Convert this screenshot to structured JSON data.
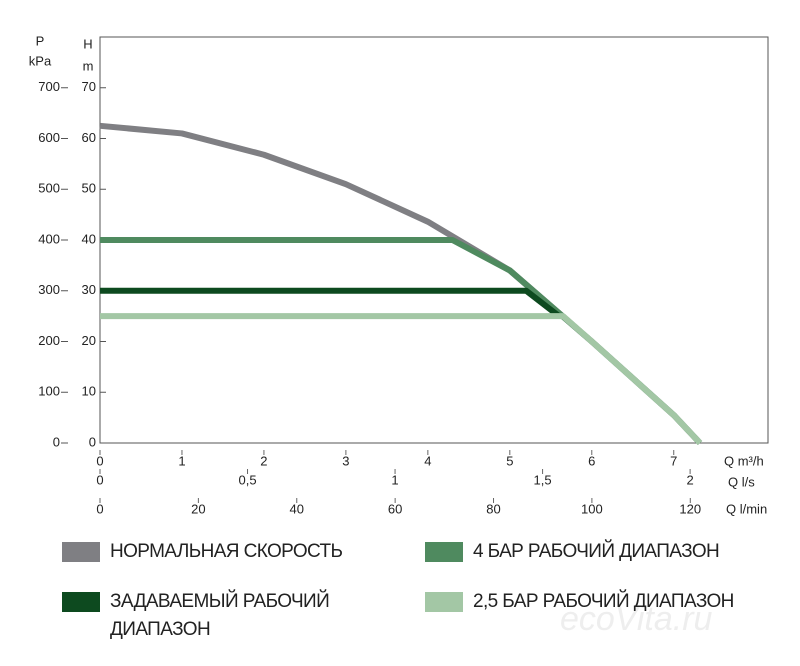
{
  "chart_data": {
    "type": "line",
    "y_label": "H",
    "y_unit": "m",
    "y2_label": "P",
    "y2_unit": "kPa",
    "x_label": "Q m³/h",
    "x2_label": "Q l/s",
    "x3_label": "Q l/min",
    "xlim": [
      0,
      8.15
    ],
    "xticks": [
      0,
      1,
      2,
      3,
      4,
      5,
      6,
      7
    ],
    "x2lim": [
      0,
      2.264
    ],
    "x2ticks": [
      0,
      {
        "value": 0.5,
        "label": "0,5"
      },
      1,
      {
        "value": 1.5,
        "label": "1,5"
      },
      2
    ],
    "x3lim": [
      0,
      135.8
    ],
    "x3ticks": [
      0,
      20,
      40,
      60,
      80,
      100,
      120
    ],
    "ylim": [
      0,
      80
    ],
    "yticks": [
      0,
      10,
      20,
      30,
      40,
      50,
      60,
      70
    ],
    "y2lim": [
      0,
      800
    ],
    "y2ticks": [
      0,
      100,
      200,
      300,
      400,
      500,
      600,
      700
    ],
    "series": [
      {
        "name": "НОРМАЛЬНАЯ СКОРОСТЬ",
        "color": "#7f7f83",
        "x": [
          0,
          1,
          2,
          3,
          4,
          5,
          6,
          7,
          7.32
        ],
        "values": [
          62.5,
          61,
          56.8,
          51,
          43.6,
          34,
          20,
          5.5,
          0
        ]
      },
      {
        "name": "4 БАР РАБОЧИЙ ДИАПАЗОН",
        "color": "#4f8a5f",
        "x": [
          0,
          4.3,
          5,
          6,
          7,
          7.32
        ],
        "values": [
          40,
          40,
          34,
          20,
          5.5,
          0
        ]
      },
      {
        "name": "ЗАДАВАЕМЫЙ РАБОЧИЙ ДИАПАЗОН",
        "color": "#0d4a1f",
        "x": [
          0,
          5.2,
          5.6
        ],
        "values": [
          30,
          30,
          25
        ]
      },
      {
        "name": "2,5 БАР РАБОЧИЙ ДИАПАЗОН",
        "color": "#a3c7a5",
        "x": [
          0,
          5.65,
          6,
          7,
          7.32
        ],
        "values": [
          25,
          25,
          20,
          5.5,
          0
        ]
      }
    ],
    "watermark": "ecoVita.ru"
  }
}
